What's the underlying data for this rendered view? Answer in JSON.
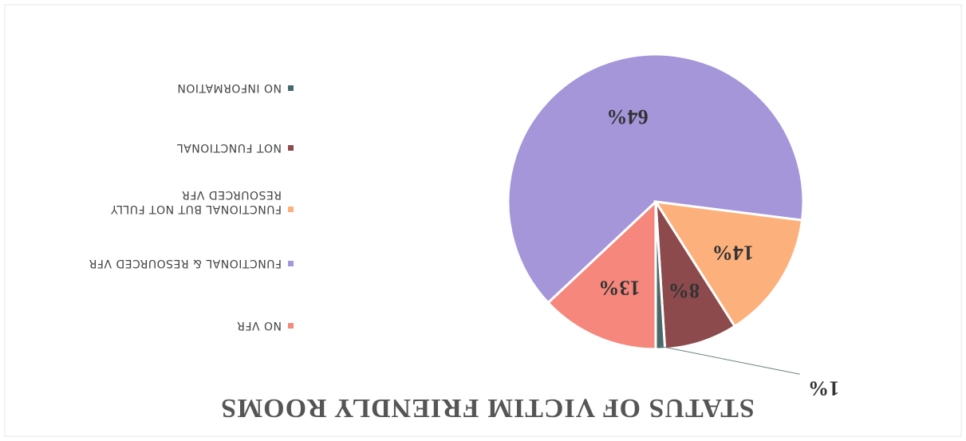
{
  "chart_data": {
    "type": "pie",
    "title": "STATUS OF VICTIM FRIENDLY ROOMS",
    "categories": [
      "NO VFR",
      "FUNCTIONAL & RESOURCED VFR",
      "FUNCTIONAL BUT NOT FULLY RESOURCED VFR",
      "NOT FUNCTIONAL",
      "NO INFORMATION"
    ],
    "values": [
      13,
      64,
      14,
      8,
      1
    ],
    "value_labels": [
      "13%",
      "64%",
      "14%",
      "8%",
      "1%"
    ],
    "colors": [
      "#f5877d",
      "#a596da",
      "#fcb17c",
      "#8c4a4c",
      "#4b6868"
    ],
    "legend": "right"
  }
}
